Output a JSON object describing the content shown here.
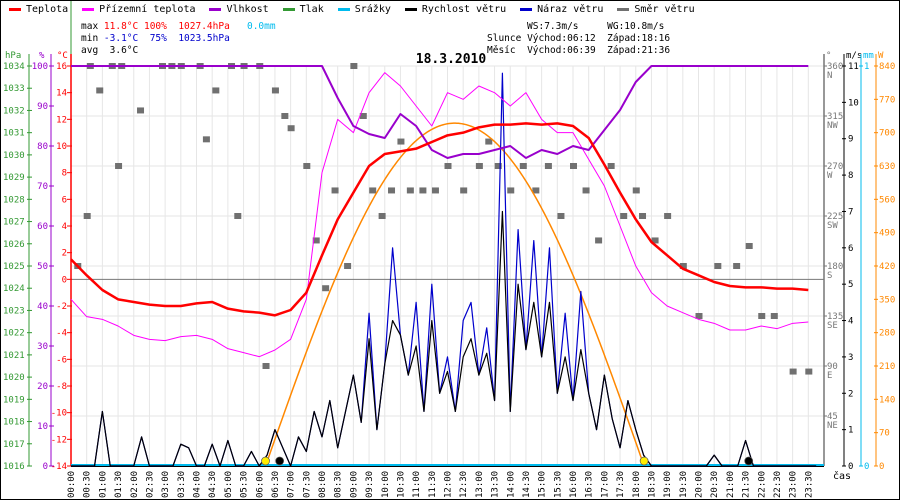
{
  "legend": [
    {
      "label": "Teplota",
      "color": "#ff0000"
    },
    {
      "label": "Přízemní teplota",
      "color": "#ff00ff"
    },
    {
      "label": "Vlhkost",
      "color": "#9900cc"
    },
    {
      "label": "Tlak",
      "color": "#339933"
    },
    {
      "label": "Srážky",
      "color": "#00bbee"
    },
    {
      "label": "Rychlost větru",
      "color": "#000000"
    },
    {
      "label": "Náraz větru",
      "color": "#0000cc"
    },
    {
      "label": "Směr větru",
      "color": "#707070"
    }
  ],
  "stats": {
    "max_label": "max",
    "max_temp": "11.8°C",
    "max_hum": "100%",
    "max_press": "1027.4hPa",
    "max_rain": "0.0mm",
    "min_label": "min",
    "min_temp": "-3.1°C",
    "min_hum": "75%",
    "min_press": "1023.5hPa",
    "avg_label": "avg",
    "avg_temp": "3.6°C",
    "ws": "WS:7.3m/s",
    "wg": "WG:10.8m/s",
    "sun_label": "Slunce",
    "sun_rise": "Východ:06:12",
    "sun_set": "Západ:18:16",
    "moon_label": "Měsíc",
    "moon_rise": "Východ:06:39",
    "moon_set": "Západ:21:36"
  },
  "chart_data": {
    "type": "line",
    "title": "18.3.2010",
    "xlabel": "čas",
    "axes": {
      "pressure": {
        "unit": "hPa",
        "range": [
          1016,
          1034
        ],
        "ticks": [
          1016,
          1017,
          1018,
          1019,
          1020,
          1021,
          1022,
          1023,
          1024,
          1025,
          1026,
          1027,
          1028,
          1029,
          1030,
          1031,
          1032,
          1033,
          1034
        ]
      },
      "humidity": {
        "unit": "%",
        "range": [
          0,
          100
        ],
        "ticks": [
          0,
          10,
          20,
          30,
          40,
          50,
          60,
          70,
          80,
          90,
          100
        ]
      },
      "temperature": {
        "unit": "°C",
        "range": [
          -14,
          16
        ],
        "ticks": [
          -14,
          -12,
          -10,
          -8,
          -6,
          -4,
          -2,
          0,
          2,
          4,
          6,
          8,
          10,
          12,
          14,
          16
        ]
      },
      "direction": {
        "unit": "°",
        "range": [
          0,
          360
        ],
        "ticks": [
          {
            "v": 45,
            "l": "45",
            "d": "NE"
          },
          {
            "v": 90,
            "l": "90",
            "d": "E"
          },
          {
            "v": 135,
            "l": "135",
            "d": "SE"
          },
          {
            "v": 180,
            "l": "180",
            "d": "S"
          },
          {
            "v": 225,
            "l": "225",
            "d": "SW"
          },
          {
            "v": 270,
            "l": "270",
            "d": "W"
          },
          {
            "v": 315,
            "l": "315",
            "d": "NW"
          },
          {
            "v": 360,
            "l": "360",
            "d": "N"
          }
        ]
      },
      "wind": {
        "unit": "m/s",
        "range": [
          0,
          11
        ],
        "ticks": [
          0,
          1,
          2,
          3,
          4,
          5,
          6,
          7,
          8,
          9,
          10,
          11
        ]
      },
      "rain": {
        "unit": "mm",
        "range": [
          0,
          1
        ],
        "ticks": [
          0,
          1
        ]
      },
      "solar": {
        "unit": "W",
        "range": [
          0,
          840
        ],
        "ticks": [
          0,
          70,
          140,
          210,
          280,
          350,
          420,
          490,
          560,
          630,
          700,
          770,
          840
        ]
      }
    },
    "time_labels": [
      "00:00",
      "00:30",
      "01:00",
      "01:30",
      "02:00",
      "02:30",
      "03:00",
      "03:30",
      "04:00",
      "04:30",
      "05:00",
      "05:30",
      "06:00",
      "06:30",
      "07:00",
      "07:30",
      "08:00",
      "08:30",
      "09:00",
      "09:30",
      "10:00",
      "10:30",
      "11:00",
      "11:30",
      "12:00",
      "12:30",
      "13:00",
      "13:30",
      "14:00",
      "14:30",
      "15:00",
      "15:30",
      "16:00",
      "16:30",
      "17:00",
      "17:30",
      "18:00",
      "18:30",
      "19:00",
      "19:30",
      "20:00",
      "20:30",
      "21:00",
      "21:30",
      "22:00",
      "22:30",
      "23:00",
      "23:30"
    ],
    "temperature_30min": [
      1.5,
      0.3,
      -0.8,
      -1.5,
      -1.7,
      -1.9,
      -2.0,
      -2.0,
      -1.8,
      -1.7,
      -2.2,
      -2.4,
      -2.5,
      -2.7,
      -2.3,
      -1.0,
      1.8,
      4.5,
      6.5,
      8.5,
      9.4,
      9.6,
      9.8,
      10.3,
      10.8,
      11.0,
      11.4,
      11.6,
      11.6,
      11.7,
      11.6,
      11.7,
      11.5,
      10.6,
      8.6,
      6.5,
      4.5,
      2.8,
      1.8,
      0.8,
      0.3,
      -0.2,
      -0.5,
      -0.6,
      -0.6,
      -0.7,
      -0.7,
      -0.8
    ],
    "apparent_temperature_30min": [
      -1.5,
      -2.8,
      -3.0,
      -3.5,
      -4.2,
      -4.5,
      -4.6,
      -4.3,
      -4.2,
      -4.5,
      -5.2,
      -5.5,
      -5.8,
      -5.3,
      -4.5,
      -1.5,
      8,
      12,
      11,
      14,
      15.5,
      14.5,
      13,
      11.5,
      14,
      13.5,
      14.5,
      14,
      13,
      14,
      12,
      11,
      11,
      9,
      7,
      4,
      1,
      -1,
      -2,
      -2.5,
      -3,
      -3.3,
      -3.8,
      -3.8,
      -3.5,
      -3.7,
      -3.3,
      -3.2
    ],
    "humidity_30min": [
      100,
      100,
      100,
      100,
      100,
      100,
      100,
      100,
      100,
      100,
      100,
      100,
      100,
      100,
      100,
      100,
      100,
      92,
      85,
      83,
      82,
      88,
      85,
      79,
      77,
      78,
      78,
      79,
      80,
      77,
      79,
      78,
      80,
      79,
      84,
      89,
      96,
      100,
      100,
      100,
      100,
      100,
      100,
      100,
      100,
      100,
      100,
      100
    ],
    "wind_speed_15min": [
      0,
      0,
      0,
      0,
      1.5,
      0,
      0,
      0,
      0,
      0.8,
      0,
      0,
      0,
      0,
      0.6,
      0.5,
      0,
      0,
      0.6,
      0,
      0.7,
      0,
      0,
      0.4,
      0,
      0.3,
      1.0,
      0.5,
      0,
      0.8,
      0.4,
      1.5,
      0.8,
      1.8,
      0.5,
      1.5,
      2.5,
      1.2,
      3.5,
      1.0,
      2.8,
      4.0,
      3.6,
      2.5,
      3.3,
      1.5,
      4.0,
      2.0,
      2.6,
      1.5,
      3.0,
      3.5,
      2.5,
      3.1,
      1.8,
      7.0,
      1.5,
      5.0,
      3.2,
      4.5,
      3.0,
      4.5,
      2.0,
      3.0,
      1.8,
      3.2,
      2.0,
      1.0,
      2.5,
      1.3,
      0.5,
      1.8,
      1.0,
      0.3,
      0,
      0,
      0,
      0,
      0,
      0,
      0,
      0,
      0.3,
      0,
      0,
      0,
      0.7,
      0,
      0,
      0,
      0,
      0,
      0,
      0,
      0,
      0
    ],
    "wind_gust_15min": [
      0,
      0,
      0,
      0,
      1.5,
      0,
      0,
      0,
      0,
      0.8,
      0,
      0,
      0,
      0,
      0.6,
      0.5,
      0,
      0,
      0.6,
      0,
      0.7,
      0,
      0,
      0.4,
      0,
      0.3,
      1.0,
      0.5,
      0,
      0.8,
      0.4,
      1.5,
      0.8,
      1.8,
      0.5,
      1.5,
      2.5,
      1.2,
      4.2,
      1.0,
      2.8,
      6.0,
      3.6,
      2.5,
      4.5,
      1.5,
      5.0,
      2.0,
      3.0,
      1.5,
      4.0,
      4.5,
      2.5,
      3.8,
      1.8,
      10.8,
      1.5,
      6.5,
      3.2,
      6.2,
      3.0,
      6.0,
      2.0,
      4.2,
      1.8,
      4.8,
      2.0,
      1.0,
      2.5,
      1.3,
      0.5,
      1.8,
      1.0,
      0.3,
      0,
      0,
      0,
      0,
      0,
      0,
      0,
      0,
      0.3,
      0,
      0,
      0,
      0.7,
      0,
      0,
      0,
      0,
      0,
      0,
      0,
      0,
      0
    ],
    "rain_mm": 0.0,
    "solar_peak_w": 720,
    "wind_direction": [
      [
        0.2,
        180
      ],
      [
        0.5,
        225
      ],
      [
        0.6,
        360
      ],
      [
        0.9,
        338
      ],
      [
        1.3,
        360
      ],
      [
        1.5,
        270
      ],
      [
        1.6,
        360
      ],
      [
        2.2,
        320
      ],
      [
        2.9,
        360
      ],
      [
        3.2,
        360
      ],
      [
        3.5,
        360
      ],
      [
        4.1,
        360
      ],
      [
        4.3,
        294
      ],
      [
        4.6,
        338
      ],
      [
        5.1,
        360
      ],
      [
        5.3,
        225
      ],
      [
        5.5,
        360
      ],
      [
        6.0,
        360
      ],
      [
        6.2,
        90
      ],
      [
        6.5,
        338
      ],
      [
        6.8,
        315
      ],
      [
        7.0,
        304
      ],
      [
        7.5,
        270
      ],
      [
        7.8,
        203
      ],
      [
        8.1,
        160
      ],
      [
        8.4,
        248
      ],
      [
        8.8,
        180
      ],
      [
        9.0,
        360
      ],
      [
        9.3,
        315
      ],
      [
        9.6,
        248
      ],
      [
        9.9,
        225
      ],
      [
        10.2,
        248
      ],
      [
        10.5,
        292
      ],
      [
        10.8,
        248
      ],
      [
        11.2,
        248
      ],
      [
        11.6,
        248
      ],
      [
        12.0,
        270
      ],
      [
        12.5,
        248
      ],
      [
        13.0,
        270
      ],
      [
        13.3,
        292
      ],
      [
        13.6,
        270
      ],
      [
        14.0,
        248
      ],
      [
        14.4,
        270
      ],
      [
        14.8,
        248
      ],
      [
        15.2,
        270
      ],
      [
        15.6,
        225
      ],
      [
        16.0,
        270
      ],
      [
        16.4,
        248
      ],
      [
        16.8,
        203
      ],
      [
        17.2,
        270
      ],
      [
        17.6,
        225
      ],
      [
        18.0,
        248
      ],
      [
        18.2,
        225
      ],
      [
        18.6,
        203
      ],
      [
        19.0,
        225
      ],
      [
        19.5,
        180
      ],
      [
        20.0,
        135
      ],
      [
        20.6,
        180
      ],
      [
        21.2,
        180
      ],
      [
        21.6,
        198
      ],
      [
        22.0,
        135
      ],
      [
        22.4,
        135
      ],
      [
        23.0,
        85
      ],
      [
        23.5,
        85
      ]
    ],
    "markers": {
      "sunrise": "06:12",
      "sunset": "18:16",
      "moonrise": "06:39",
      "moonset": "21:36"
    }
  }
}
